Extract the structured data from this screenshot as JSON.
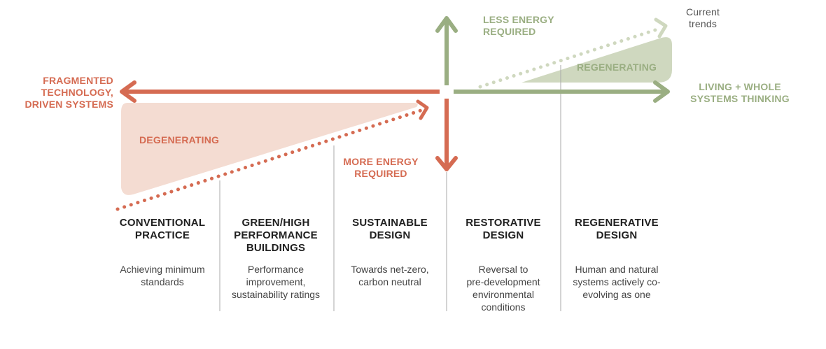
{
  "colors": {
    "degenerating": "#d56b52",
    "degenerating_fill": "#f4dcd2",
    "regenerating": "#9aae82",
    "regenerating_fill": "#cfd8bf",
    "divider": "#aaaaaa"
  },
  "labels": {
    "less_energy": "LESS ENERGY\nREQUIRED",
    "more_energy": "MORE ENERGY\nREQUIRED",
    "fragmented": "FRAGMENTED\nTECHNOLOGY,\nDRIVEN SYSTEMS",
    "living": "LIVING + WHOLE\nSYSTEMS THINKING",
    "current_trends": "Current\ntrends",
    "degenerating": "DEGENERATING",
    "regenerating": "REGENERATING"
  },
  "stages": [
    {
      "title": "CONVENTIONAL\nPRACTICE",
      "desc": "Achieving minimum\nstandards"
    },
    {
      "title": "GREEN/HIGH\nPERFORMANCE\nBUILDINGS",
      "desc": "Performance\nimprovement,\nsustainability ratings"
    },
    {
      "title": "SUSTAINABLE\nDESIGN",
      "desc": "Towards net-zero,\ncarbon neutral"
    },
    {
      "title": "RESTORATIVE\nDESIGN",
      "desc": "Reversal to\npre-development\nenvironmental\nconditions"
    },
    {
      "title": "REGENERATIVE\nDESIGN",
      "desc": "Human and natural\nsystems actively co-\nevolving as one"
    }
  ]
}
